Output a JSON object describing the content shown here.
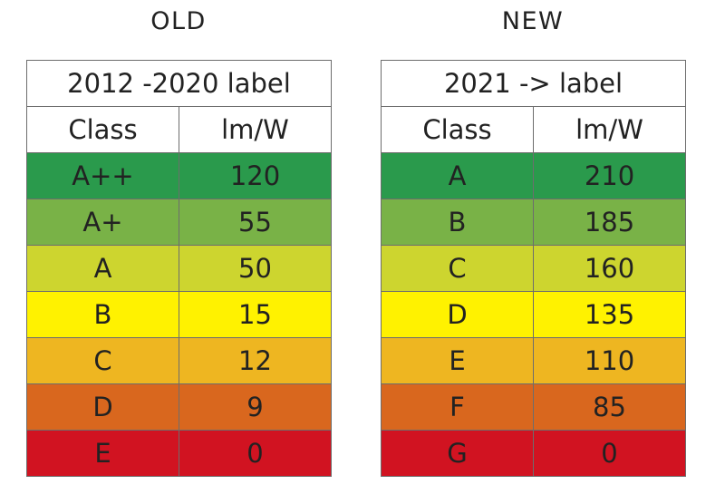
{
  "old": {
    "heading": "OLD",
    "label_title": "2012 -2020 label",
    "columns": [
      "Class",
      "lm/W"
    ],
    "rows": [
      {
        "class": "A++",
        "value": "120",
        "color": "#2a9a4c"
      },
      {
        "class": "A+",
        "value": "55",
        "color": "#79b247"
      },
      {
        "class": "A",
        "value": "50",
        "color": "#cdd52f"
      },
      {
        "class": "B",
        "value": "15",
        "color": "#fff200"
      },
      {
        "class": "C",
        "value": "12",
        "color": "#eeb621"
      },
      {
        "class": "D",
        "value": "9",
        "color": "#d9671e"
      },
      {
        "class": "E",
        "value": "0",
        "color": "#d11321"
      }
    ]
  },
  "new": {
    "heading": "NEW",
    "label_title": "2021 -> label",
    "columns": [
      "Class",
      "lm/W"
    ],
    "rows": [
      {
        "class": "A",
        "value": "210",
        "color": "#2a9a4c"
      },
      {
        "class": "B",
        "value": "185",
        "color": "#79b247"
      },
      {
        "class": "C",
        "value": "160",
        "color": "#cdd52f"
      },
      {
        "class": "D",
        "value": "135",
        "color": "#fff200"
      },
      {
        "class": "E",
        "value": "110",
        "color": "#eeb621"
      },
      {
        "class": "F",
        "value": "85",
        "color": "#d9671e"
      },
      {
        "class": "G",
        "value": "0",
        "color": "#d11321"
      }
    ]
  }
}
